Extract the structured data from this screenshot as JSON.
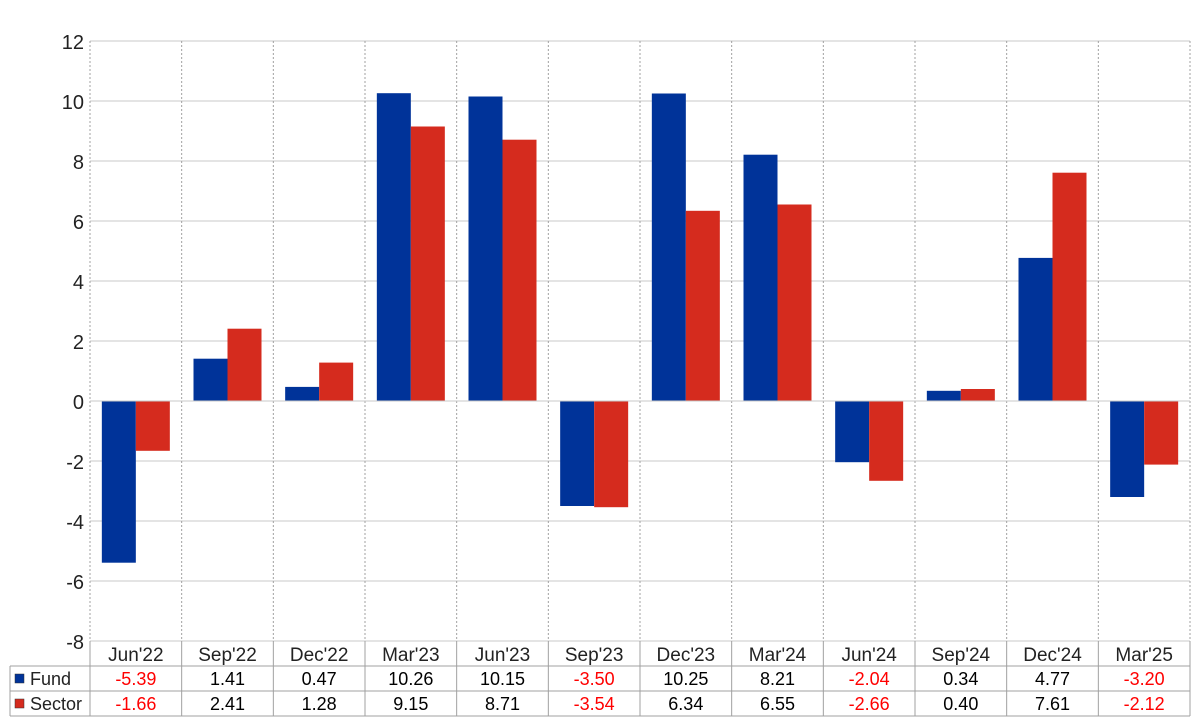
{
  "chart_data": {
    "type": "bar",
    "categories": [
      "Jun'22",
      "Sep'22",
      "Dec'22",
      "Mar'23",
      "Jun'23",
      "Sep'23",
      "Dec'23",
      "Mar'24",
      "Jun'24",
      "Sep'24",
      "Dec'24",
      "Mar'25"
    ],
    "series": [
      {
        "name": "Fund",
        "color": "#003399",
        "values": [
          -5.39,
          1.41,
          0.47,
          10.26,
          10.15,
          -3.5,
          10.25,
          8.21,
          -2.04,
          0.34,
          4.77,
          -3.2
        ],
        "labels": [
          "-5.39",
          "1.41",
          "0.47",
          "10.26",
          "10.15",
          "-3.50",
          "10.25",
          "8.21",
          "-2.04",
          "0.34",
          "4.77",
          "-3.20"
        ]
      },
      {
        "name": "Sector",
        "color": "#d52b1e",
        "values": [
          -1.66,
          2.41,
          1.28,
          9.15,
          8.71,
          -3.54,
          6.34,
          6.55,
          -2.66,
          0.4,
          7.61,
          -2.12
        ],
        "labels": [
          "-1.66",
          "2.41",
          "1.28",
          "9.15",
          "8.71",
          "-3.54",
          "6.34",
          "6.55",
          "-2.66",
          "0.40",
          "7.61",
          "-2.12"
        ]
      }
    ],
    "yticks": [
      "12",
      "10",
      "8",
      "6",
      "4",
      "2",
      "0",
      "-2",
      "-4",
      "-6",
      "-8"
    ],
    "ylim": [
      -8,
      12
    ],
    "grid": true,
    "legend": "data table below chart",
    "negative_color": "#ff0000",
    "positive_color": "#000000"
  }
}
